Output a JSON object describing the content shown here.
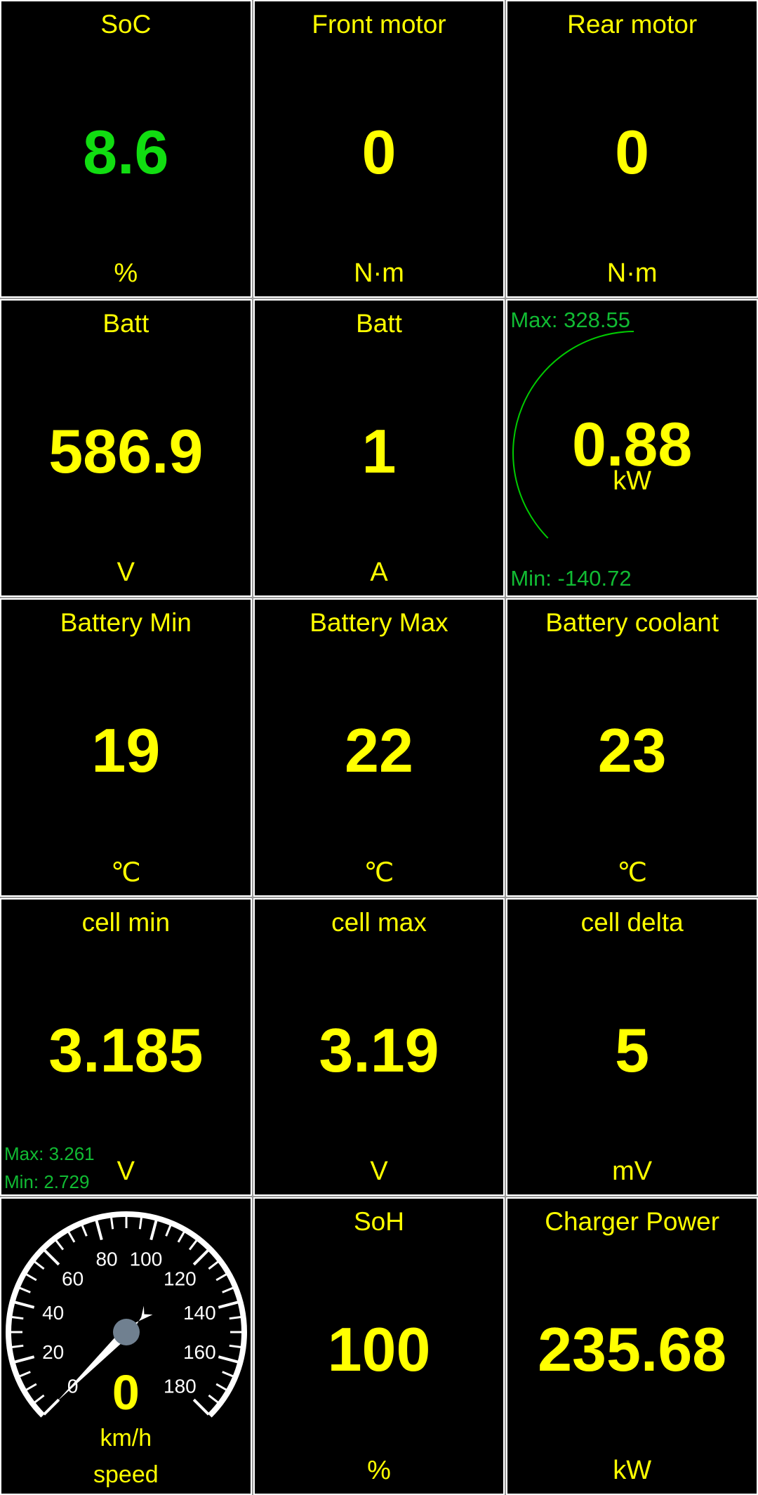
{
  "colors": {
    "value": "#ffff00",
    "soc_value": "#11dd11",
    "minmax": "#11bb33",
    "border": "#ffffff",
    "arc": "#00cc00",
    "needle_hub": "#708090"
  },
  "cells": [
    {
      "title": "SoC",
      "value": "8.6",
      "unit": "%"
    },
    {
      "title": "Front motor",
      "value": "0",
      "unit": "N·m"
    },
    {
      "title": "Rear motor",
      "value": "0",
      "unit": "N·m"
    },
    {
      "title": "Batt",
      "value": "586.9",
      "unit": "V"
    },
    {
      "title": "Batt",
      "value": "1",
      "unit": "A"
    },
    {
      "title": "",
      "value": "0.88",
      "unit": "kW",
      "max": "Max: 328.55",
      "min": "Min: -140.72"
    },
    {
      "title": "Battery Min",
      "value": "19",
      "unit": "℃"
    },
    {
      "title": "Battery Max",
      "value": "22",
      "unit": "℃"
    },
    {
      "title": "Battery coolant",
      "value": "23",
      "unit": "℃"
    },
    {
      "title": "cell min",
      "value": "3.185",
      "unit": "V",
      "max": "Max: 3.261",
      "min": "Min: 2.729"
    },
    {
      "title": "cell max",
      "value": "3.19",
      "unit": "V"
    },
    {
      "title": "cell delta",
      "value": "5",
      "unit": "mV"
    },
    {
      "title": "speed",
      "value": "0",
      "unit": "km/h",
      "gauge": {
        "min": 0,
        "max": 180,
        "current": 0,
        "labels": [
          "0",
          "20",
          "40",
          "60",
          "80",
          "100",
          "120",
          "140",
          "160",
          "180"
        ]
      }
    },
    {
      "title": "SoH",
      "value": "100",
      "unit": "%"
    },
    {
      "title": "Charger Power",
      "value": "235.68",
      "unit": "kW"
    }
  ]
}
